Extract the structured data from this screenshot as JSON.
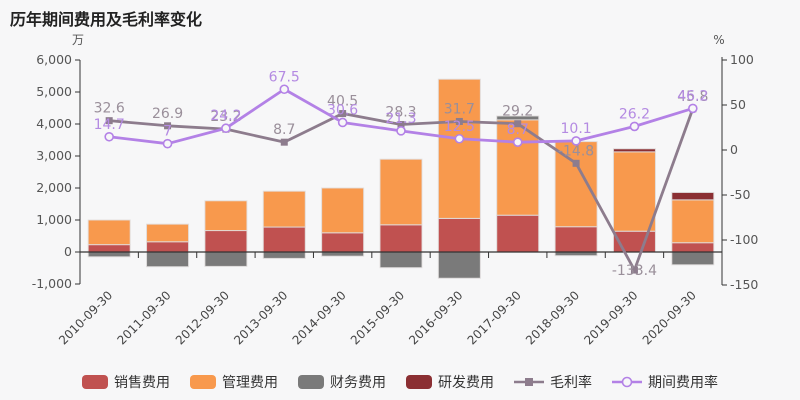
{
  "title": "历年期间费用及毛利率变化",
  "chart_data": {
    "type": "bar+line combo (stacked bars, dual y-axes)",
    "title": "历年期间费用及毛利率变化",
    "legend_position": "bottom",
    "grid": false,
    "categories": [
      "2010-09-30",
      "2011-09-30",
      "2012-09-30",
      "2013-09-30",
      "2014-09-30",
      "2015-09-30",
      "2016-09-30",
      "2017-09-30",
      "2018-09-30",
      "2019-09-30",
      "2020-09-30"
    ],
    "left_axis": {
      "unit": "万",
      "min": -1000,
      "max": 6000,
      "tick_values": [
        6000,
        5000,
        4000,
        3000,
        2000,
        1000,
        0,
        -1000
      ],
      "tick_labels": [
        "6,000",
        "5,000",
        "4,000",
        "3,000",
        "2,000",
        "1,000",
        "0",
        "-1,000"
      ]
    },
    "right_axis": {
      "unit": "%",
      "min": -150,
      "max": 100,
      "tick_values": [
        100,
        50,
        0,
        -50,
        -100,
        -150
      ],
      "tick_labels": [
        "100",
        "50",
        "0",
        "-50",
        "-100",
        "-150"
      ]
    },
    "bar_series": [
      {
        "key": "sales-expense",
        "name": "销售费用",
        "color": "#c05150",
        "values": [
          230,
          320,
          670,
          780,
          600,
          850,
          1050,
          1150,
          790,
          650,
          290
        ]
      },
      {
        "key": "admin-expense",
        "name": "管理费用",
        "color": "#f8994d",
        "values": [
          770,
          550,
          930,
          1120,
          1400,
          2050,
          4350,
          2980,
          2660,
          2480,
          1340
        ]
      },
      {
        "key": "finance-expense",
        "name": "财务费用",
        "color": "#7a7a7a",
        "values": [
          -150,
          -460,
          -450,
          -200,
          -130,
          -490,
          -820,
          120,
          -115,
          0,
          -400
        ]
      },
      {
        "key": "rd-expense",
        "name": "研发费用",
        "color": "#8b2f33",
        "values": [
          0,
          0,
          0,
          0,
          0,
          0,
          0,
          0,
          0,
          95,
          230
        ]
      }
    ],
    "line_series": [
      {
        "key": "gross-margin",
        "name": "毛利率",
        "color": "#8d7c8d",
        "label_color": "#9a8f9a",
        "marker": "square",
        "axis": "right",
        "values": [
          32.6,
          26.9,
          23.2,
          8.7,
          40.5,
          28.3,
          31.7,
          29.2,
          -14.8,
          -133.4,
          45.8
        ]
      },
      {
        "key": "expense-ratio",
        "name": "期间费用率",
        "color": "#b381e6",
        "label_color": "#b48ae2",
        "marker": "circle",
        "axis": "right",
        "values": [
          14.7,
          7,
          24.2,
          67.5,
          30.6,
          21.3,
          12.5,
          8.7,
          10.1,
          26.2,
          46.2
        ]
      }
    ]
  },
  "colors": {
    "background": "#f7f7f8",
    "axis_line": "#333333",
    "axis_text": "#555555",
    "title_text": "#222222"
  }
}
